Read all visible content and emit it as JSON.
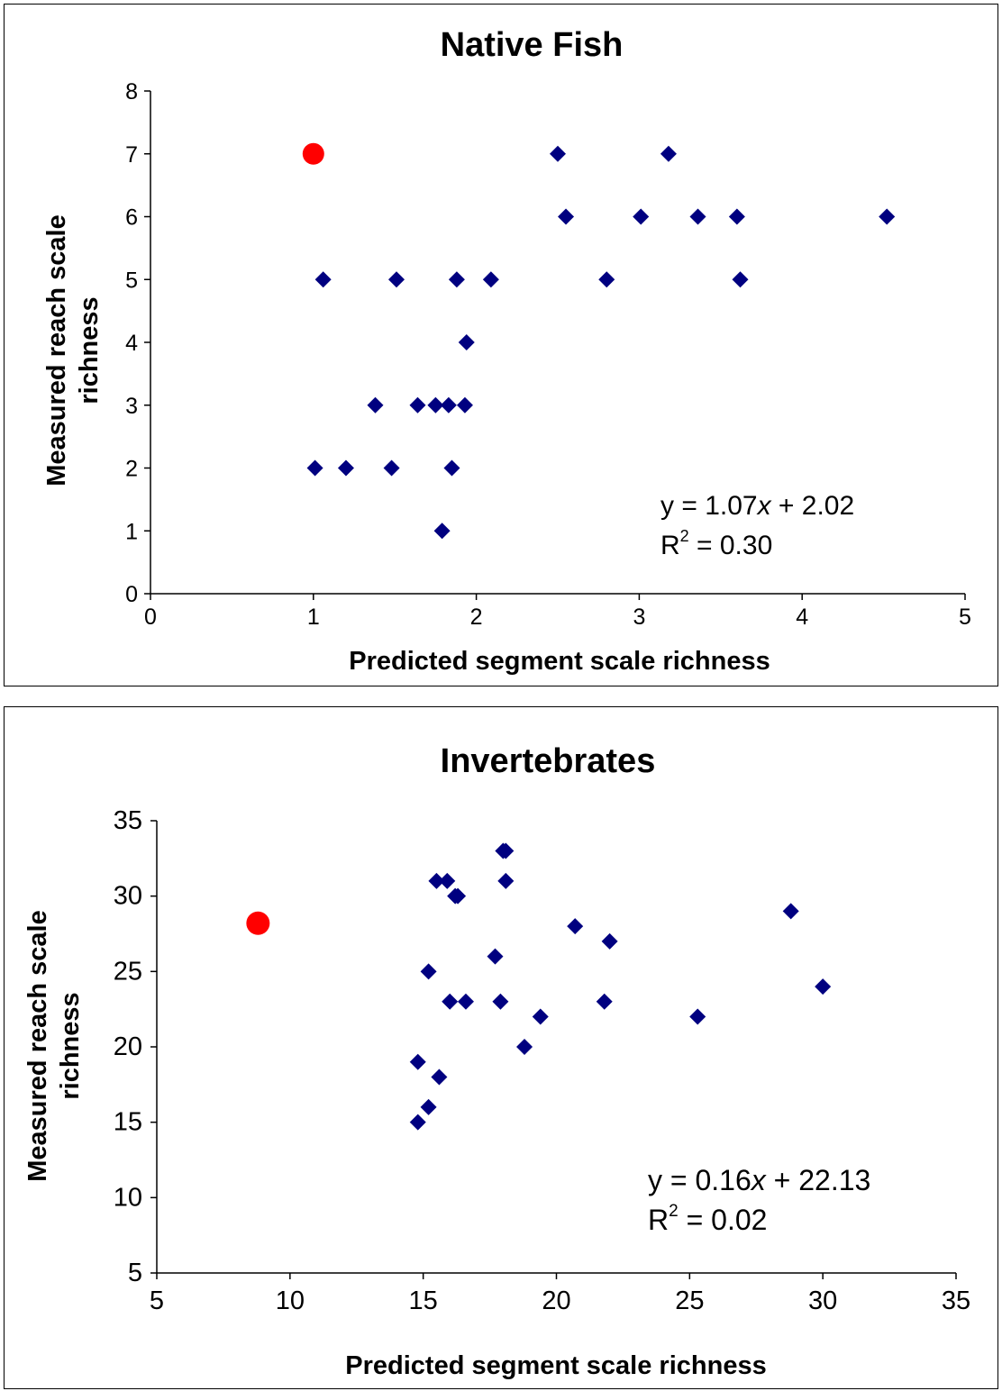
{
  "chart_data": [
    {
      "type": "scatter",
      "title": "Native Fish",
      "xlabel": "Predicted segment scale richness",
      "ylabel": [
        "Measured reach scale",
        "richness"
      ],
      "xlim": [
        0,
        5
      ],
      "ylim": [
        0,
        8
      ],
      "xticks": [
        0,
        1,
        2,
        3,
        4,
        5
      ],
      "yticks": [
        0,
        1,
        2,
        3,
        4,
        5,
        6,
        7,
        8
      ],
      "grid": false,
      "marker_color": "#000080",
      "highlight_color": "#ff0000",
      "annotation": {
        "eq_prefix": "y = 1.07",
        "eq_var": "x",
        "eq_suffix": " + 2.02",
        "r_base": "R",
        "r_sup": "2",
        "r_value": " = 0.30"
      },
      "series": [
        {
          "marker": "diamond",
          "points": [
            [
              2.5,
              7
            ],
            [
              3.18,
              7
            ],
            [
              2.55,
              6
            ],
            [
              3.01,
              6
            ],
            [
              3.36,
              6
            ],
            [
              3.6,
              6
            ],
            [
              4.52,
              6
            ],
            [
              1.06,
              5
            ],
            [
              1.51,
              5
            ],
            [
              1.88,
              5
            ],
            [
              2.09,
              5
            ],
            [
              2.8,
              5
            ],
            [
              3.62,
              5
            ],
            [
              1.94,
              4
            ],
            [
              1.38,
              3
            ],
            [
              1.64,
              3
            ],
            [
              1.75,
              3
            ],
            [
              1.83,
              3
            ],
            [
              1.93,
              3
            ],
            [
              1.01,
              2
            ],
            [
              1.2,
              2
            ],
            [
              1.48,
              2
            ],
            [
              1.85,
              2
            ],
            [
              1.79,
              1
            ]
          ]
        },
        {
          "marker": "circle",
          "points": [
            [
              1.0,
              7
            ]
          ]
        }
      ]
    },
    {
      "type": "scatter",
      "title": "Invertebrates",
      "xlabel": "Predicted segment scale richness",
      "ylabel": [
        "Measured reach scale",
        "richness"
      ],
      "xlim": [
        5,
        35
      ],
      "ylim": [
        5,
        35
      ],
      "xticks": [
        5,
        10,
        15,
        20,
        25,
        30,
        35
      ],
      "yticks": [
        5,
        10,
        15,
        20,
        25,
        30,
        35
      ],
      "grid": false,
      "marker_color": "#000080",
      "highlight_color": "#ff0000",
      "annotation": {
        "eq_prefix": "y = 0.16",
        "eq_var": "x",
        "eq_suffix": " + 22.13",
        "r_base": "R",
        "r_sup": "2",
        "r_value": " = 0.02"
      },
      "series": [
        {
          "marker": "diamond",
          "points": [
            [
              18.0,
              33
            ],
            [
              18.1,
              33
            ],
            [
              15.5,
              31
            ],
            [
              15.9,
              31
            ],
            [
              18.1,
              31
            ],
            [
              16.2,
              30
            ],
            [
              16.3,
              30
            ],
            [
              28.8,
              29
            ],
            [
              20.7,
              28
            ],
            [
              22.0,
              27
            ],
            [
              17.7,
              26
            ],
            [
              15.2,
              25
            ],
            [
              30.0,
              24
            ],
            [
              16.0,
              23
            ],
            [
              16.6,
              23
            ],
            [
              17.9,
              23
            ],
            [
              21.8,
              23
            ],
            [
              19.4,
              22
            ],
            [
              25.3,
              22
            ],
            [
              18.8,
              20
            ],
            [
              14.8,
              19
            ],
            [
              15.6,
              18
            ],
            [
              15.2,
              16
            ],
            [
              14.8,
              15
            ]
          ]
        },
        {
          "marker": "circle",
          "points": [
            [
              8.8,
              28.2
            ]
          ]
        }
      ]
    }
  ]
}
